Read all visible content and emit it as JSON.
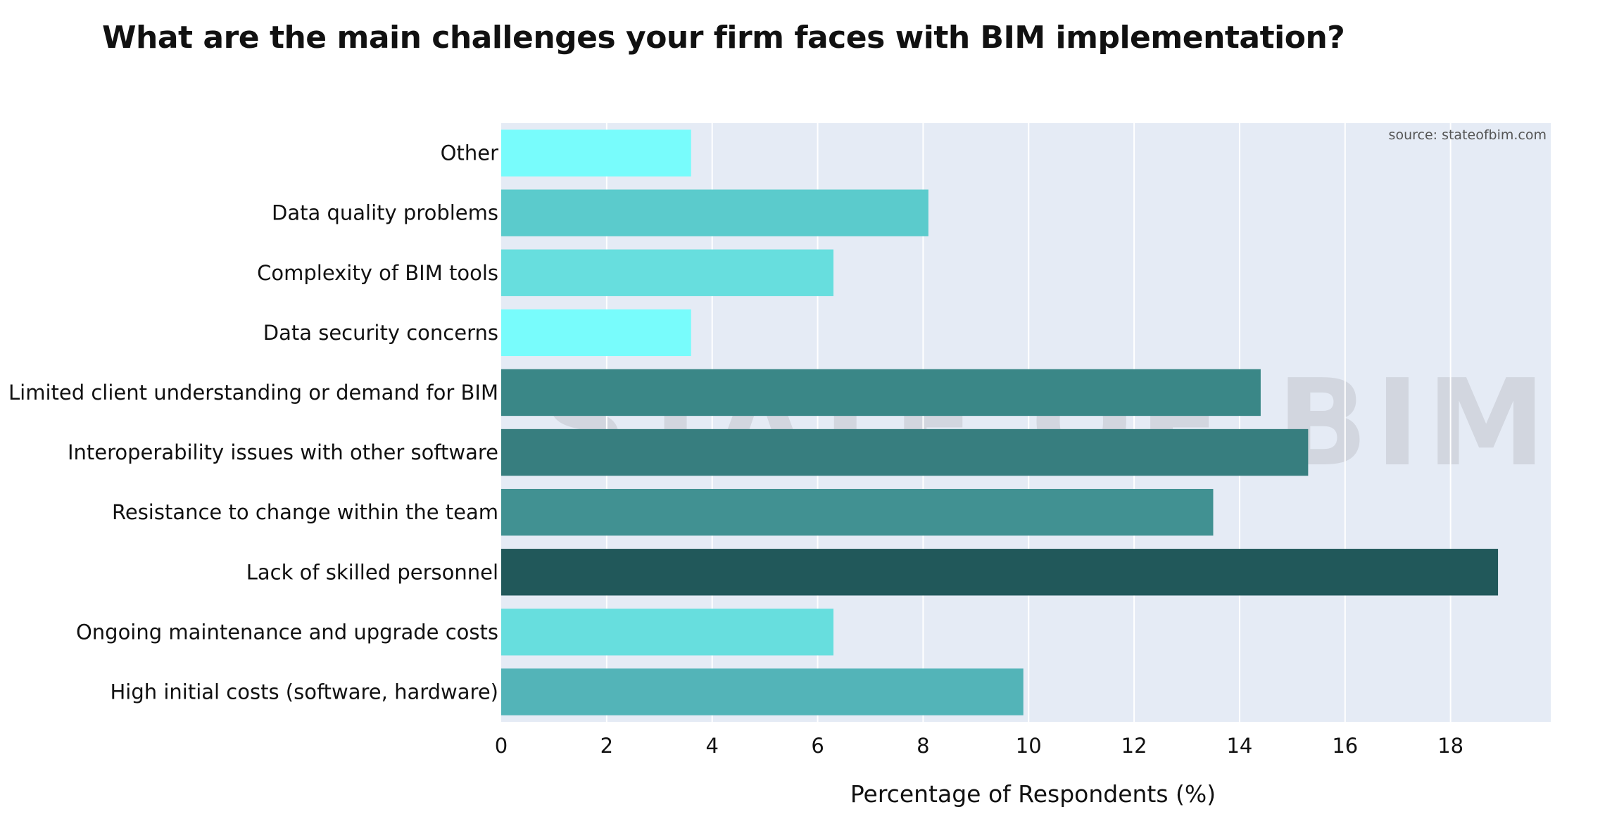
{
  "chart_data": {
    "type": "bar",
    "orientation": "horizontal",
    "title": "What are the main challenges your firm faces with BIM implementation?",
    "xlabel": "Percentage of Respondents (%)",
    "ylabel": "",
    "xlim": [
      0,
      19.9
    ],
    "xticks": [
      0,
      2,
      4,
      6,
      8,
      10,
      12,
      14,
      16,
      18
    ],
    "grid": true,
    "source": "source: stateofbim.com",
    "watermark": "STATE OF BIM",
    "categories": [
      "High initial costs (software, hardware)",
      "Ongoing maintenance and upgrade costs",
      "Lack of skilled personnel",
      "Resistance to change within the team",
      "Interoperability issues with other software",
      "Limited client understanding or demand for BIM",
      "Data security concerns",
      "Complexity of BIM tools",
      "Data quality problems",
      "Other"
    ],
    "values": [
      9.9,
      6.3,
      18.9,
      13.5,
      15.3,
      14.4,
      3.6,
      6.3,
      8.1,
      3.6
    ],
    "colors": [
      "#53b4b8",
      "#67dede",
      "#21585a",
      "#419192",
      "#377e7f",
      "#3a8787",
      "#78fcfc",
      "#67dede",
      "#5bcbcc",
      "#78fcfc"
    ],
    "plot_background": "#e5ebf5"
  }
}
